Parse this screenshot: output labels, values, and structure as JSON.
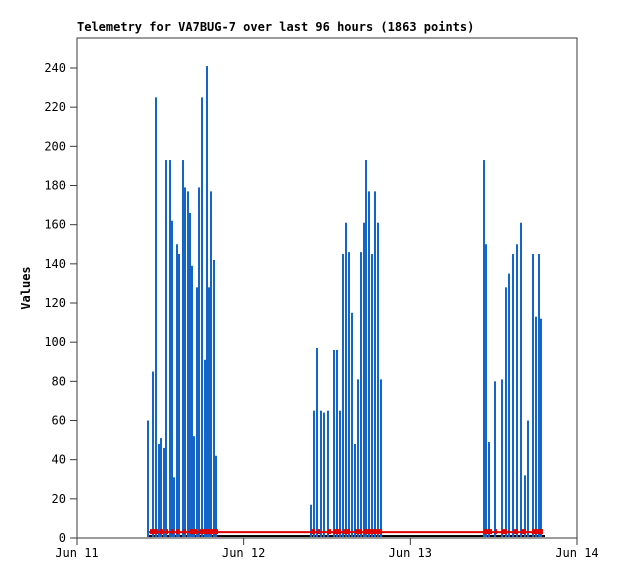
{
  "colors": {
    "bar_blue": "#1565c8",
    "line_red": "#e00000",
    "line_black": "#000000",
    "axis_border": "#3a3a3a",
    "text": "#000000",
    "background": "#ffffff"
  },
  "chart_data": {
    "type": "bar",
    "subtype": "impulse-spikes",
    "title": "Telemetry for VA7BUG-7 over last 96 hours (1863 points)",
    "ylabel": "Values",
    "xlabel": "",
    "ylim": [
      0,
      255
    ],
    "y_tick_values": [
      0,
      20,
      40,
      60,
      80,
      100,
      120,
      140,
      160,
      180,
      200,
      220,
      240
    ],
    "x_ticks": [
      {
        "label": "Jun 11",
        "day": 0
      },
      {
        "label": "Jun 12",
        "day": 1
      },
      {
        "label": "Jun 13",
        "day": 2
      },
      {
        "label": "Jun 14",
        "day": 3
      }
    ],
    "x_axis_unit": "days since Jun 11 00:00",
    "grid": false,
    "legend": "none",
    "series": [
      {
        "name": "telemetry-values-impulses",
        "type": "impulse",
        "color_key": "bar_blue",
        "points": [
          [
            0.426,
            60
          ],
          [
            0.456,
            85
          ],
          [
            0.474,
            225
          ],
          [
            0.492,
            48
          ],
          [
            0.504,
            51
          ],
          [
            0.522,
            46
          ],
          [
            0.534,
            193
          ],
          [
            0.558,
            193
          ],
          [
            0.57,
            162
          ],
          [
            0.582,
            31
          ],
          [
            0.6,
            150
          ],
          [
            0.612,
            145
          ],
          [
            0.636,
            193
          ],
          [
            0.648,
            179
          ],
          [
            0.666,
            177
          ],
          [
            0.678,
            166
          ],
          [
            0.69,
            139
          ],
          [
            0.702,
            52
          ],
          [
            0.72,
            128
          ],
          [
            0.732,
            179
          ],
          [
            0.75,
            225
          ],
          [
            0.768,
            91
          ],
          [
            0.78,
            241
          ],
          [
            0.792,
            128
          ],
          [
            0.804,
            177
          ],
          [
            0.822,
            142
          ],
          [
            0.834,
            42
          ],
          [
            1.404,
            17
          ],
          [
            1.422,
            65
          ],
          [
            1.44,
            97
          ],
          [
            1.464,
            65
          ],
          [
            1.482,
            64
          ],
          [
            1.506,
            65
          ],
          [
            1.542,
            96
          ],
          [
            1.56,
            96
          ],
          [
            1.578,
            65
          ],
          [
            1.596,
            145
          ],
          [
            1.614,
            161
          ],
          [
            1.632,
            146
          ],
          [
            1.65,
            115
          ],
          [
            1.668,
            48
          ],
          [
            1.686,
            81
          ],
          [
            1.704,
            146
          ],
          [
            1.722,
            161
          ],
          [
            1.734,
            193
          ],
          [
            1.752,
            177
          ],
          [
            1.77,
            145
          ],
          [
            1.788,
            177
          ],
          [
            1.806,
            161
          ],
          [
            1.824,
            81
          ],
          [
            2.442,
            193
          ],
          [
            2.454,
            150
          ],
          [
            2.472,
            49
          ],
          [
            2.508,
            80
          ],
          [
            2.55,
            81
          ],
          [
            2.574,
            128
          ],
          [
            2.592,
            135
          ],
          [
            2.616,
            145
          ],
          [
            2.64,
            150
          ],
          [
            2.664,
            161
          ],
          [
            2.688,
            32
          ],
          [
            2.706,
            60
          ],
          [
            2.736,
            145
          ],
          [
            2.754,
            113
          ],
          [
            2.772,
            145
          ],
          [
            2.784,
            112
          ]
        ]
      },
      {
        "name": "red-baseline-channel",
        "type": "line",
        "color_key": "line_red",
        "value": 3,
        "x_start": 0.432,
        "x_end": 2.796,
        "thick_segments": [
          [
            0.438,
            0.486
          ],
          [
            0.498,
            0.516
          ],
          [
            0.534,
            0.546
          ],
          [
            0.564,
            0.582
          ],
          [
            0.594,
            0.612
          ],
          [
            0.636,
            0.654
          ],
          [
            0.678,
            0.72
          ],
          [
            0.732,
            0.846
          ],
          [
            1.404,
            1.428
          ],
          [
            1.44,
            1.458
          ],
          [
            1.506,
            1.524
          ],
          [
            1.542,
            1.584
          ],
          [
            1.596,
            1.638
          ],
          [
            1.668,
            1.71
          ],
          [
            1.722,
            1.83
          ],
          [
            2.442,
            2.49
          ],
          [
            2.508,
            2.52
          ],
          [
            2.55,
            2.58
          ],
          [
            2.616,
            2.646
          ],
          [
            2.664,
            2.694
          ],
          [
            2.73,
            2.796
          ]
        ]
      },
      {
        "name": "black-baseline-channel",
        "type": "line",
        "color_key": "line_black",
        "value": 1,
        "x_start": 0.426,
        "x_end": 2.808
      }
    ]
  }
}
